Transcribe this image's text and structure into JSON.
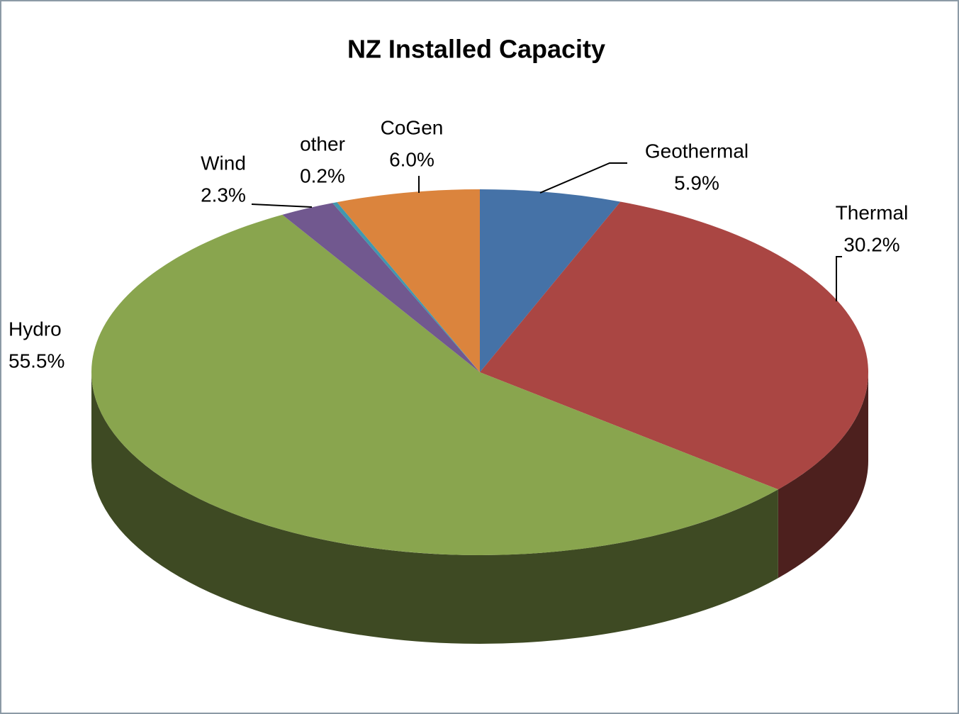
{
  "chart_data": {
    "type": "pie",
    "title": "NZ Installed Capacity",
    "categories": [
      "Geothermal",
      "Thermal",
      "Hydro",
      "Wind",
      "other",
      "CoGen"
    ],
    "values": [
      5.9,
      30.2,
      55.5,
      2.3,
      0.2,
      6.0
    ],
    "value_labels": [
      "5.9%",
      "30.2%",
      "55.5%",
      "2.3%",
      "0.2%",
      "6.0%"
    ],
    "colors": [
      "#4572a7",
      "#aa4643",
      "#89a54e",
      "#71588f",
      "#4198af",
      "#db843d"
    ]
  }
}
